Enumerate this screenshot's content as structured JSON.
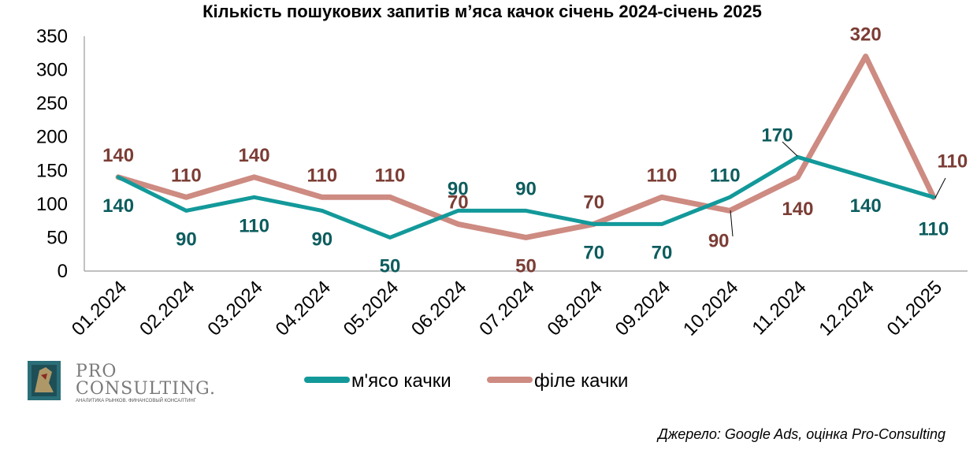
{
  "chart_data": {
    "type": "line",
    "title": "Кількість пошукових запитів м’яса качок січень 2024-січень 2025",
    "categories": [
      "01.2024",
      "02.2024",
      "03.2024",
      "04.2024",
      "05.2024",
      "06.2024",
      "07.2024",
      "08.2024",
      "09.2024",
      "10.2024",
      "11.2024",
      "12.2024",
      "01.2025"
    ],
    "ylim": [
      0,
      350
    ],
    "yticks": [
      0,
      50,
      100,
      150,
      200,
      250,
      300,
      350
    ],
    "grid": false,
    "legend_position": "bottom",
    "series": [
      {
        "name": "м'ясо качки",
        "color": "#13999a",
        "label_color": "#0d5c5e",
        "values": [
          140,
          90,
          110,
          90,
          50,
          90,
          90,
          70,
          70,
          110,
          170,
          140,
          110
        ]
      },
      {
        "name": "філе качки",
        "color": "#cd8b82",
        "label_color": "#7b3d35",
        "values": [
          140,
          110,
          140,
          110,
          110,
          70,
          50,
          70,
          110,
          90,
          140,
          320,
          110
        ]
      }
    ]
  },
  "source": "Джерело: Google Ads, оцінка Pro-Consulting",
  "logo": {
    "line1": "PRO",
    "line2": "CONSULTING.",
    "tagline": "АНАЛИТИКА РЫНКОВ. ФИНАНСОВЫЙ КОНСАЛТИНГ"
  }
}
